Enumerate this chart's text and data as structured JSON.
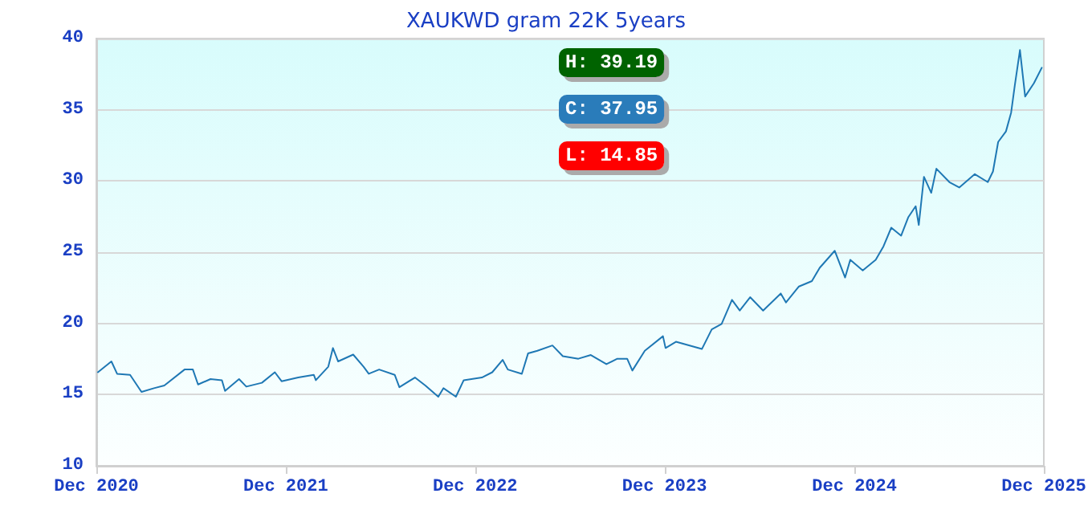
{
  "chart_data": {
    "type": "line",
    "title": "XAUKWD gram 22K 5years",
    "x": [
      "2020-12-04",
      "2020-12-30",
      "2021-01-10",
      "2021-02-04",
      "2021-02-26",
      "2021-03-22",
      "2021-04-11",
      "2021-05-20",
      "2021-06-05",
      "2021-06-15",
      "2021-07-09",
      "2021-07-31",
      "2021-08-06",
      "2021-09-02",
      "2021-09-16",
      "2021-10-16",
      "2021-11-10",
      "2021-11-23",
      "2021-12-25",
      "2022-01-24",
      "2022-01-28",
      "2022-02-21",
      "2022-03-02",
      "2022-03-12",
      "2022-04-10",
      "2022-04-30",
      "2022-05-10",
      "2022-05-30",
      "2022-06-29",
      "2022-07-08",
      "2022-08-07",
      "2022-08-27",
      "2022-09-21",
      "2022-10-01",
      "2022-10-25",
      "2022-11-09",
      "2022-12-14",
      "2023-01-03",
      "2023-01-23",
      "2023-02-02",
      "2023-03-01",
      "2023-03-13",
      "2023-03-31",
      "2023-04-29",
      "2023-05-19",
      "2023-06-18",
      "2023-07-12",
      "2023-08-11",
      "2023-09-01",
      "2023-09-20",
      "2023-09-30",
      "2023-10-24",
      "2023-11-28",
      "2023-12-03",
      "2023-12-23",
      "2024-02-11",
      "2024-03-01",
      "2024-03-20",
      "2024-04-09",
      "2024-04-24",
      "2024-05-14",
      "2024-06-08",
      "2024-07-12",
      "2024-07-22",
      "2024-08-16",
      "2024-09-10",
      "2024-09-25",
      "2024-10-24",
      "2024-11-13",
      "2024-11-23",
      "2024-12-17",
      "2025-01-11",
      "2025-01-26",
      "2025-02-10",
      "2025-03-01",
      "2025-03-15",
      "2025-03-29",
      "2025-04-04",
      "2025-04-14",
      "2025-04-28",
      "2025-05-08",
      "2025-06-02",
      "2025-06-21",
      "2025-07-21",
      "2025-08-15",
      "2025-08-25",
      "2025-09-04",
      "2025-09-19",
      "2025-09-29",
      "2025-10-06",
      "2025-10-16",
      "2025-10-26",
      "2025-11-12",
      "2025-11-27"
    ],
    "series": [
      {
        "color": "#1f78b4",
        "values": [
          16.57,
          17.33,
          16.46,
          16.39,
          15.19,
          15.45,
          15.64,
          16.76,
          16.76,
          15.71,
          16.09,
          16.01,
          15.26,
          16.09,
          15.56,
          15.83,
          16.57,
          15.94,
          16.2,
          16.39,
          16.01,
          16.96,
          18.27,
          17.33,
          17.81,
          16.96,
          16.46,
          16.76,
          16.39,
          15.52,
          16.2,
          15.64,
          14.85,
          15.45,
          14.85,
          16.01,
          16.2,
          16.57,
          17.44,
          16.76,
          16.46,
          17.89,
          18.08,
          18.45,
          17.7,
          17.52,
          17.78,
          17.14,
          17.52,
          17.52,
          16.69,
          18.08,
          19.1,
          18.27,
          18.71,
          18.2,
          19.58,
          19.96,
          21.65,
          20.9,
          21.84,
          20.9,
          22.1,
          21.47,
          22.59,
          22.97,
          23.9,
          25.1,
          23.22,
          24.46,
          23.72,
          24.46,
          25.41,
          26.72,
          26.16,
          27.47,
          28.23,
          26.91,
          30.29,
          29.17,
          30.86,
          29.92,
          29.54,
          30.48,
          29.92,
          30.67,
          32.74,
          33.48,
          34.8,
          36.69,
          39.19,
          35.93,
          36.87,
          37.95
        ]
      }
    ],
    "xlim": [
      "2020-12-01",
      "2025-12-01"
    ],
    "xticks": [
      {
        "value": "2020-12-01",
        "label": "Dec 2020"
      },
      {
        "value": "2021-12-01",
        "label": "Dec 2021"
      },
      {
        "value": "2022-12-01",
        "label": "Dec 2022"
      },
      {
        "value": "2023-12-01",
        "label": "Dec 2023"
      },
      {
        "value": "2024-12-01",
        "label": "Dec 2024"
      },
      {
        "value": "2025-12-01",
        "label": "Dec 2025"
      }
    ],
    "ylim": [
      10,
      40
    ],
    "yticks": [
      10,
      15,
      20,
      25,
      30,
      35,
      40
    ],
    "grid": "y",
    "marker": "none",
    "line_style": "solid",
    "annotations": [
      "H: 39.19",
      "C: 37.95",
      "L: 14.85"
    ]
  }
}
